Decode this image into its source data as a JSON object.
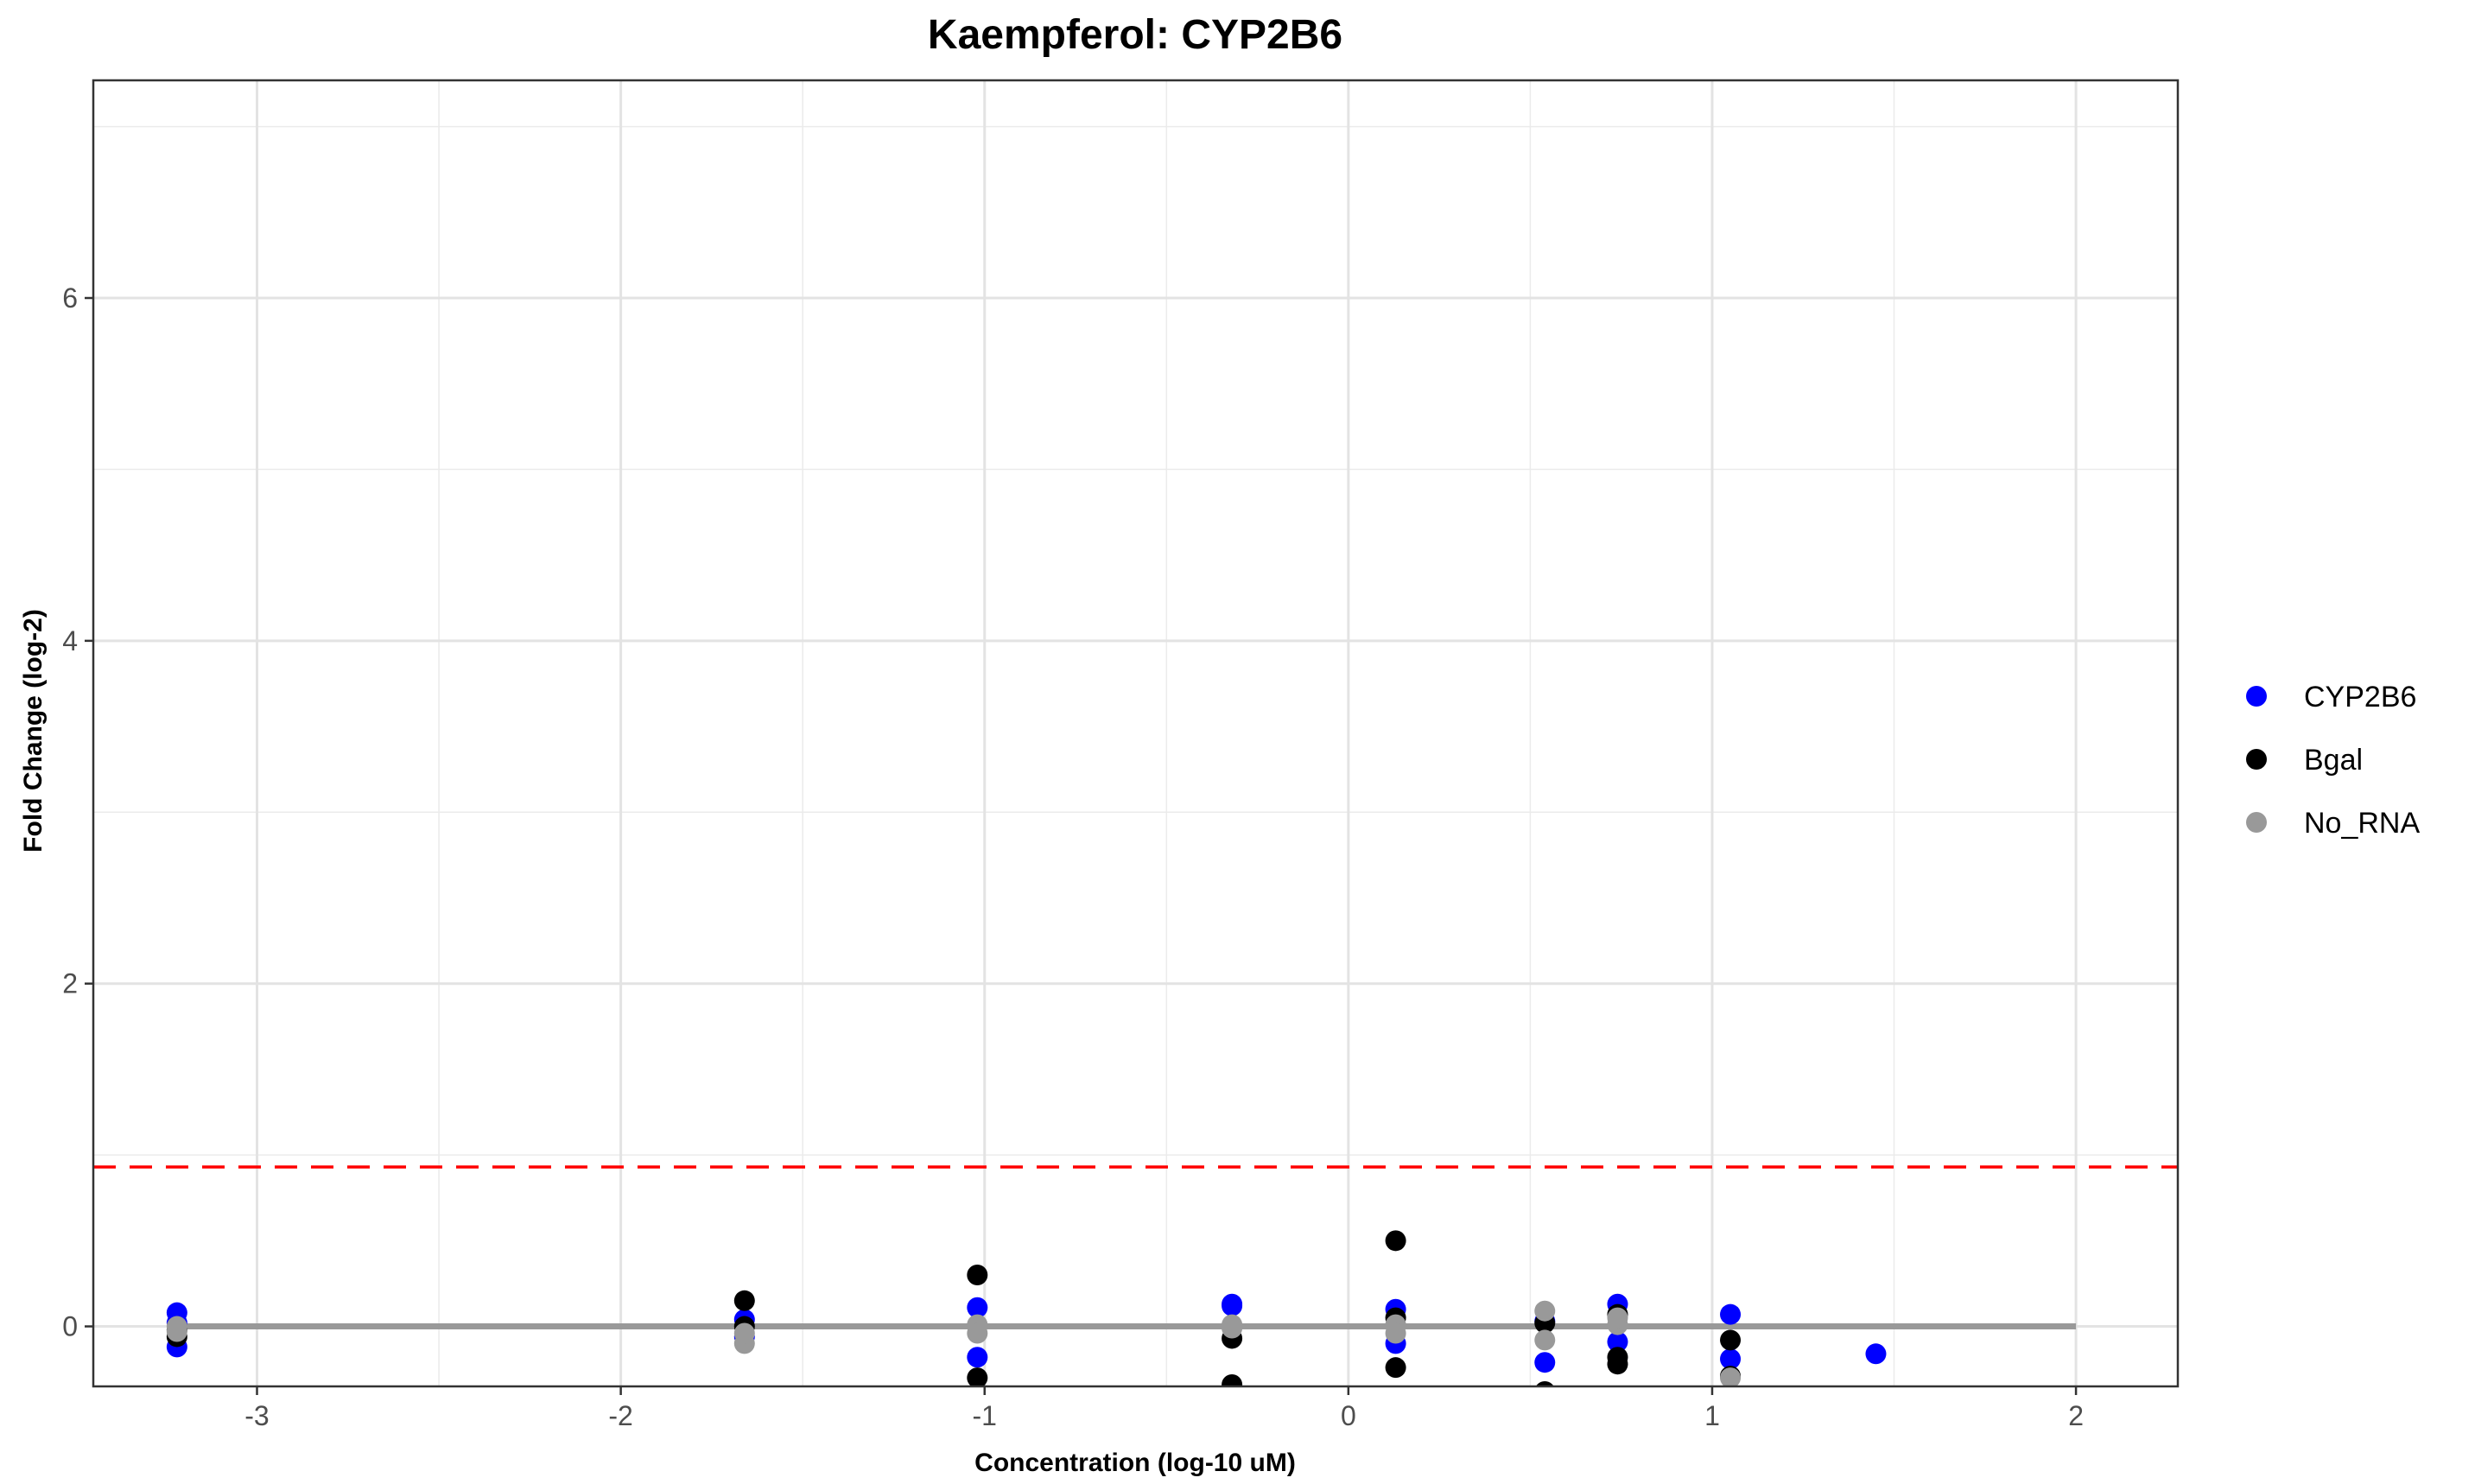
{
  "chart_data": {
    "type": "scatter",
    "title": "Kaempferol: CYP2B6",
    "xlabel": "Concentration (log-10 uM)",
    "ylabel": "Fold Change (log-2)",
    "xlim": [
      -3.45,
      2.28
    ],
    "ylim": [
      -0.35,
      7.27
    ],
    "x_ticks": [
      -3,
      -2,
      -1,
      0,
      1,
      2
    ],
    "y_ticks": [
      0,
      2,
      4,
      6
    ],
    "x_minor_ticks": [
      -2.5,
      -1.5,
      -0.5,
      0.5,
      1.5
    ],
    "y_minor_ticks": [
      1,
      3,
      5,
      7
    ],
    "grid": true,
    "legend_position": "right",
    "reference_line": {
      "y": 0.93,
      "color": "#ff0000",
      "style": "dashed"
    },
    "fit_line": {
      "x": [
        -3.22,
        2.0
      ],
      "y": [
        0.0,
        0.0
      ],
      "color": "#999999"
    },
    "series": [
      {
        "name": "CYP2B6",
        "color": "#0000ff",
        "points": [
          [
            -3.22,
            0.08
          ],
          [
            -3.22,
            -0.12
          ],
          [
            -3.22,
            0.02
          ],
          [
            -1.66,
            0.04
          ],
          [
            -1.66,
            -0.06
          ],
          [
            -1.02,
            0.11
          ],
          [
            -1.02,
            -0.18
          ],
          [
            -0.32,
            0.13
          ],
          [
            -0.32,
            0.12
          ],
          [
            0.13,
            0.1
          ],
          [
            0.13,
            -0.1
          ],
          [
            0.54,
            -0.21
          ],
          [
            0.54,
            0.03
          ],
          [
            0.74,
            0.13
          ],
          [
            0.74,
            -0.09
          ],
          [
            1.05,
            0.07
          ],
          [
            1.05,
            -0.19
          ],
          [
            1.45,
            -0.16
          ]
        ]
      },
      {
        "name": "Bgal",
        "color": "#000000",
        "points": [
          [
            -3.22,
            -0.06
          ],
          [
            -3.22,
            -0.02
          ],
          [
            -1.66,
            0.15
          ],
          [
            -1.66,
            0.0
          ],
          [
            -1.02,
            0.3
          ],
          [
            -1.02,
            -0.3
          ],
          [
            -0.32,
            -0.07
          ],
          [
            -0.32,
            -0.34
          ],
          [
            0.13,
            0.5
          ],
          [
            0.13,
            -0.24
          ],
          [
            0.13,
            0.05
          ],
          [
            0.54,
            0.02
          ],
          [
            0.54,
            -0.38
          ],
          [
            0.74,
            -0.18
          ],
          [
            0.74,
            -0.22
          ],
          [
            0.74,
            0.07
          ],
          [
            1.05,
            -0.08
          ],
          [
            1.05,
            -0.29
          ]
        ]
      },
      {
        "name": "No_RNA",
        "color": "#999999",
        "points": [
          [
            -3.22,
            0.0
          ],
          [
            -3.22,
            -0.03
          ],
          [
            -1.66,
            -0.1
          ],
          [
            -1.66,
            -0.04
          ],
          [
            -1.02,
            0.01
          ],
          [
            -1.02,
            -0.04
          ],
          [
            -0.32,
            -0.01
          ],
          [
            -0.32,
            0.01
          ],
          [
            0.13,
            0.01
          ],
          [
            0.13,
            -0.04
          ],
          [
            0.54,
            0.09
          ],
          [
            0.54,
            -0.08
          ],
          [
            0.74,
            0.01
          ],
          [
            0.74,
            0.05
          ],
          [
            1.05,
            -0.3
          ]
        ]
      }
    ]
  }
}
